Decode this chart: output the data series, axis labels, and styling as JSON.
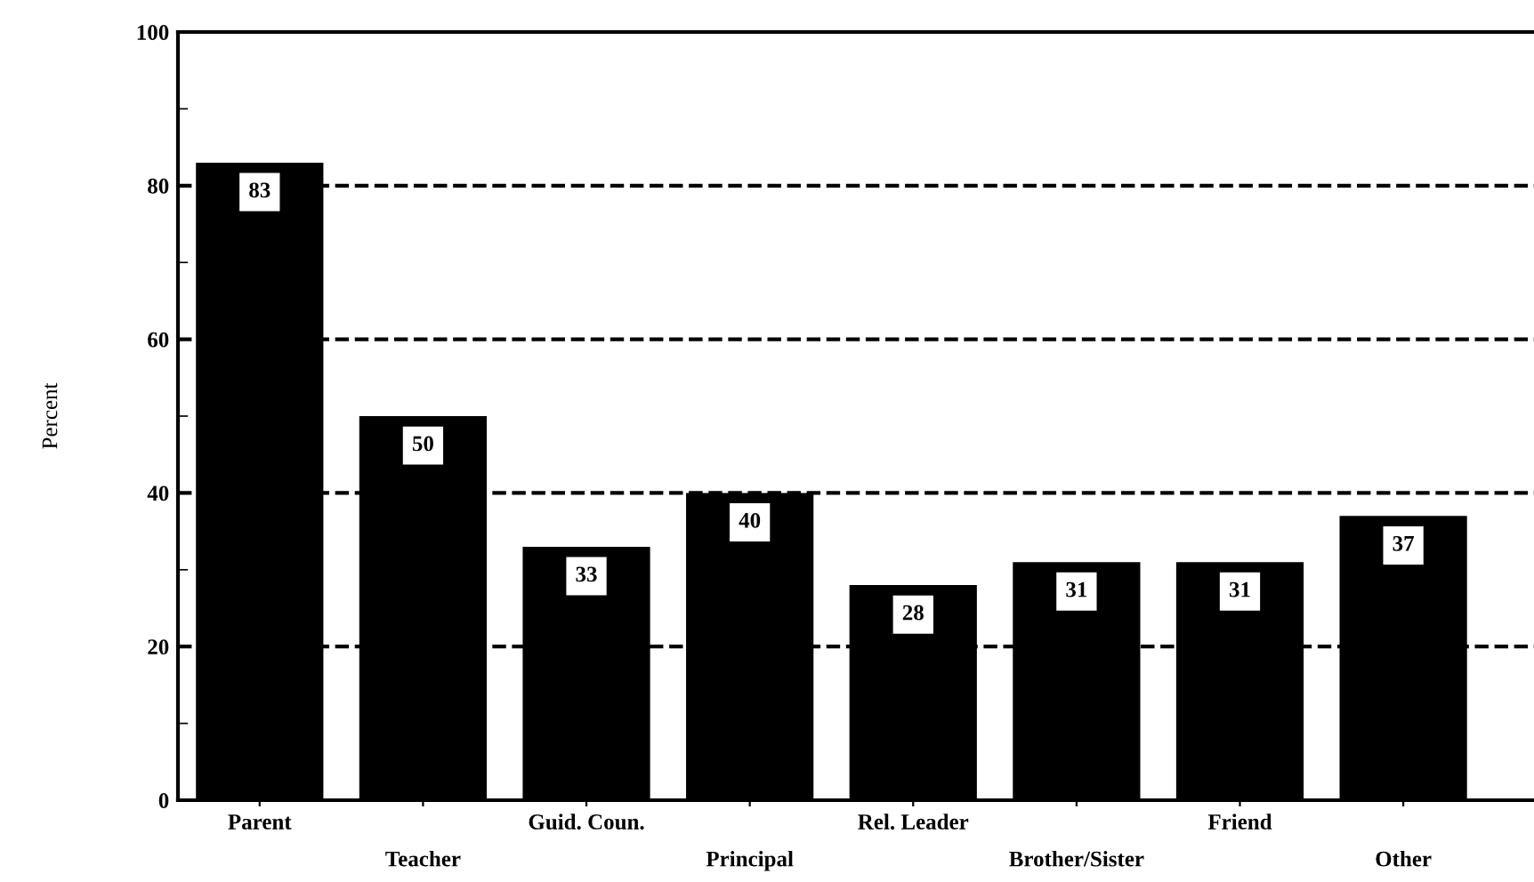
{
  "chart_data": {
    "type": "bar",
    "ylabel": "Percent",
    "categories": [
      "Parent",
      "Teacher",
      "Guid. Coun.",
      "Principal",
      "Rel. Leader",
      "Brother/Sister",
      "Friend",
      "Other"
    ],
    "values": [
      83,
      50,
      33,
      40,
      28,
      31,
      31,
      37
    ],
    "color": "#000000",
    "ylim": [
      0,
      100
    ],
    "yticks": [
      0,
      20,
      40,
      60,
      80,
      100
    ],
    "grid": "y",
    "line_style": "dashed",
    "data_labels": true
  }
}
